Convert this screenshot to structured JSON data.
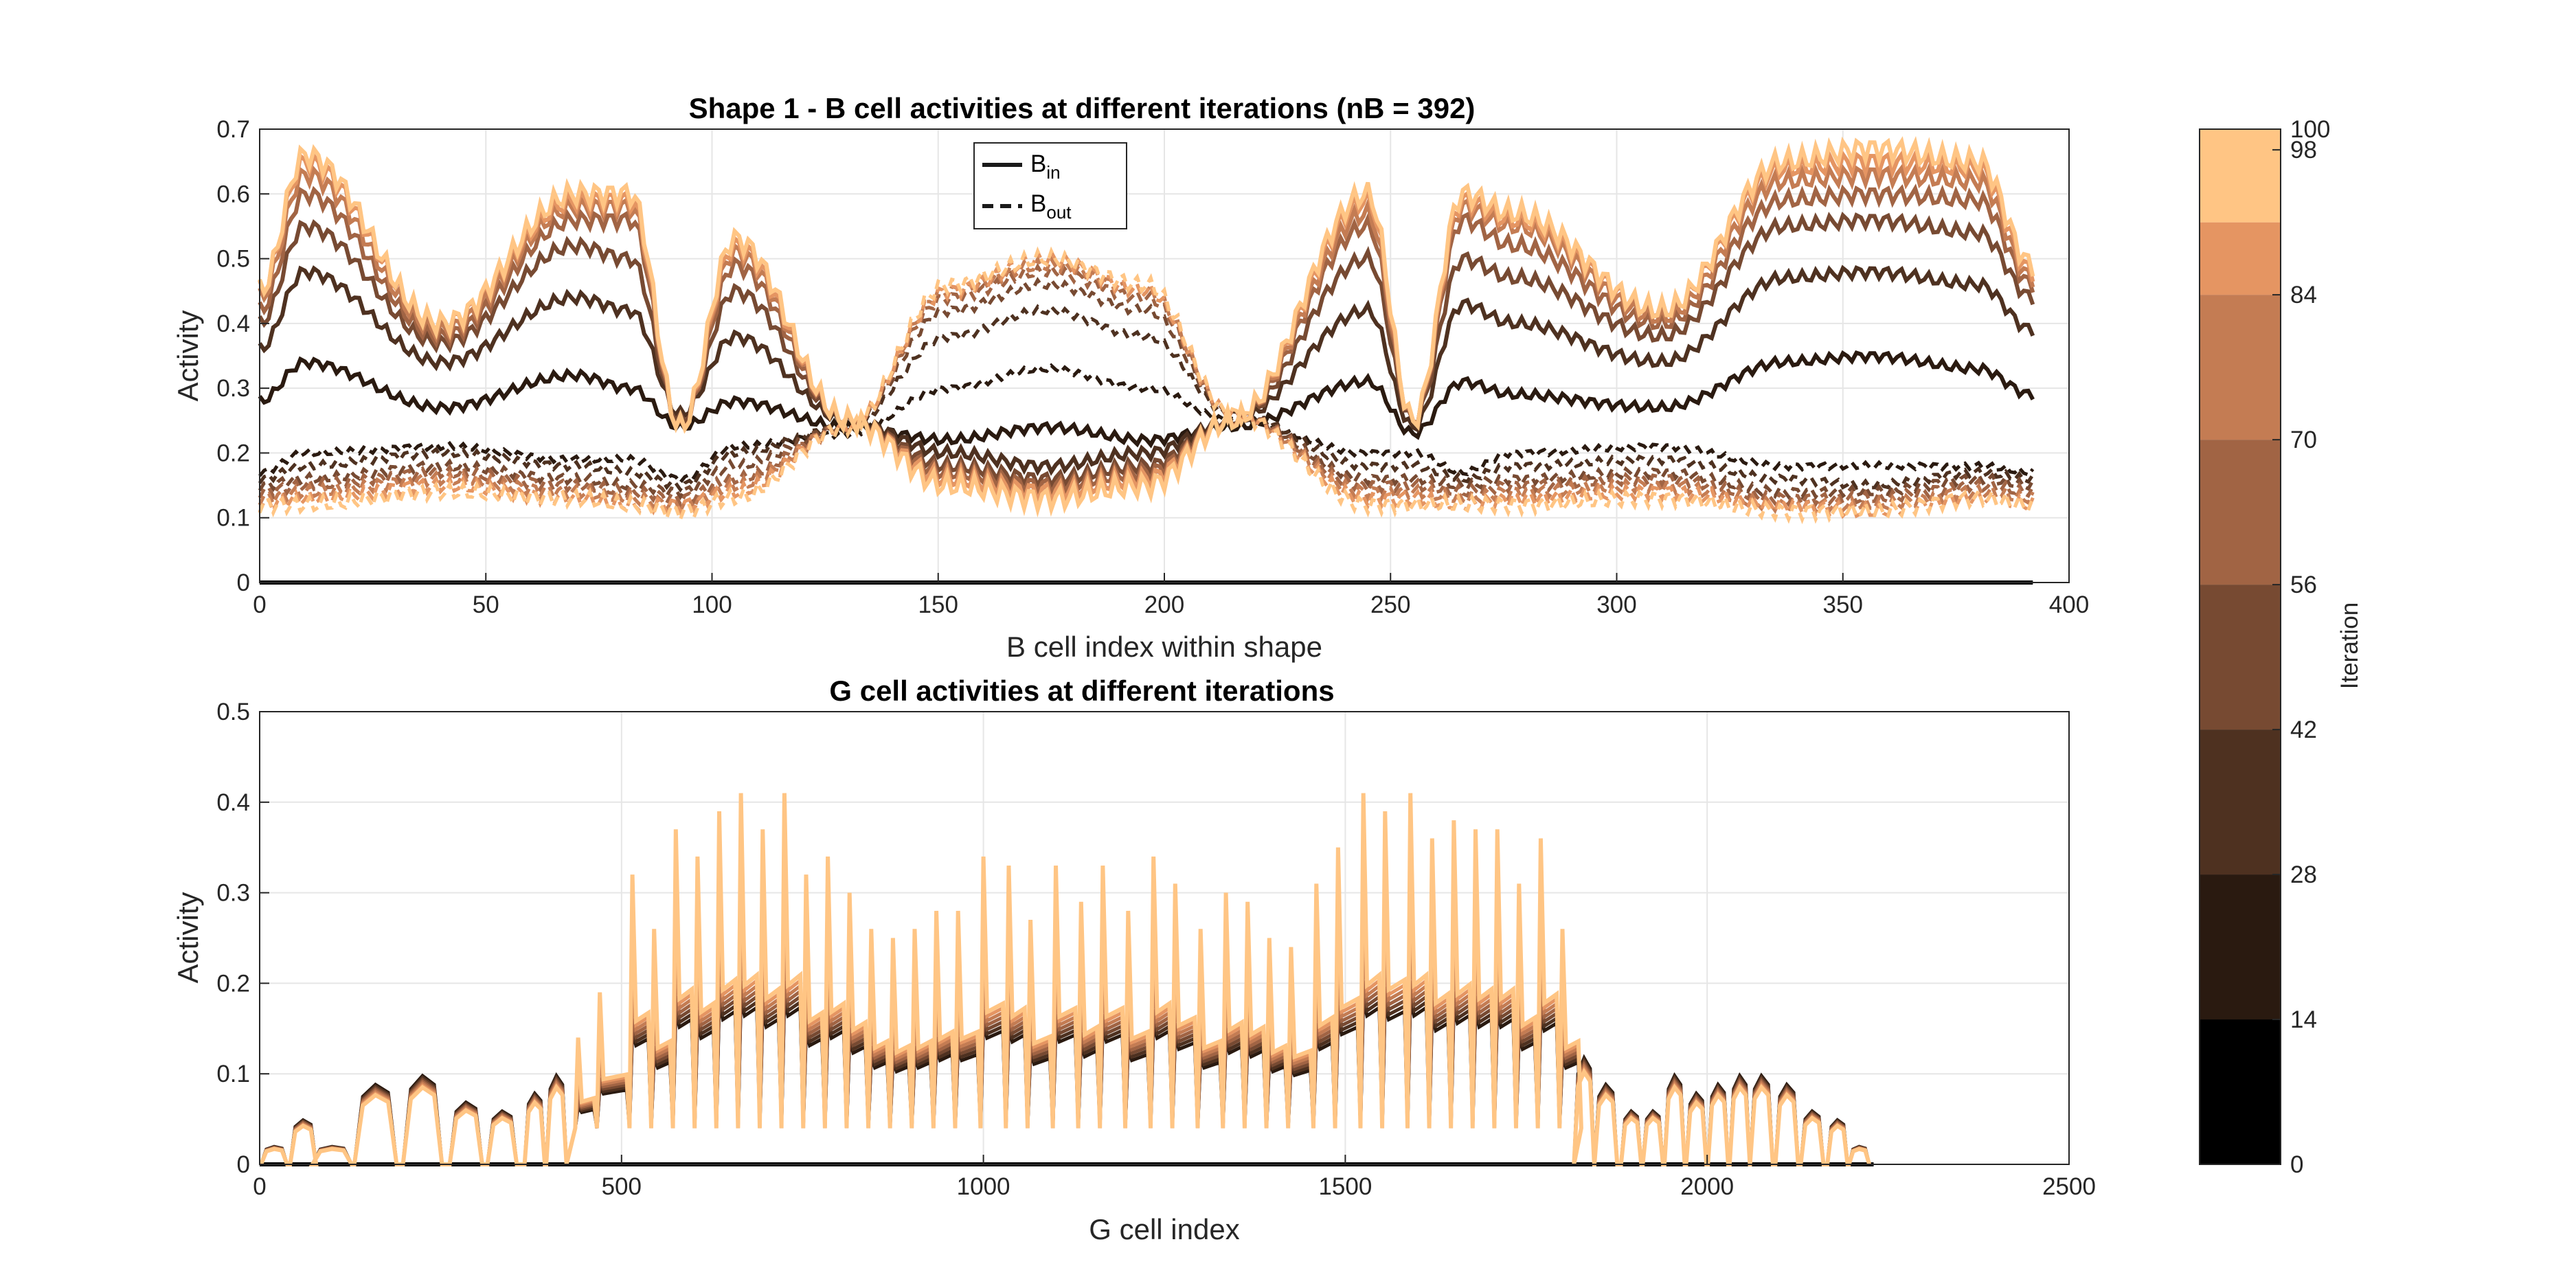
{
  "chart_data": [
    {
      "type": "line",
      "title": "Shape 1 - B cell activities at different iterations (nB = 392)",
      "xlabel": "B cell index within shape",
      "ylabel": "Activity",
      "xlim": [
        0,
        400
      ],
      "ylim": [
        0,
        0.7
      ],
      "xticks": [
        "0",
        "50",
        "100",
        "150",
        "200",
        "250",
        "300",
        "350",
        "400"
      ],
      "yticks": [
        "0",
        "0.1",
        "0.2",
        "0.3",
        "0.4",
        "0.5",
        "0.6",
        "0.7"
      ],
      "grid": true,
      "legend": {
        "placement": "top-center",
        "entries": [
          {
            "base": "B",
            "sub": "in",
            "style": "solid"
          },
          {
            "base": "B",
            "sub": "out",
            "style": "dashed"
          }
        ]
      },
      "n_cells": 392,
      "iterations_shown": [
        0,
        14,
        28,
        42,
        56,
        70,
        84,
        98
      ],
      "series": [
        {
          "iteration": 14,
          "profile": {
            "x": [
              0,
              10,
              40,
              70,
              82,
              93,
              105,
              130,
              152,
              174,
              196,
              215,
              245,
              255,
              266,
              277,
              310,
              337,
              356,
              380,
              392
            ],
            "in": [
              0.28,
              0.34,
              0.27,
              0.32,
              0.3,
              0.24,
              0.28,
              0.24,
              0.22,
              0.24,
              0.22,
              0.24,
              0.31,
              0.23,
              0.31,
              0.29,
              0.27,
              0.34,
              0.35,
              0.33,
              0.29
            ],
            "out": [
              0.17,
              0.2,
              0.21,
              0.19,
              0.19,
              0.16,
              0.21,
              0.23,
              0.3,
              0.33,
              0.3,
              0.25,
              0.2,
              0.2,
              0.17,
              0.2,
              0.21,
              0.18,
              0.18,
              0.18,
              0.17
            ]
          }
        },
        {
          "iteration": 28,
          "profile": {
            "x": [
              0,
              10,
              40,
              70,
              82,
              93,
              105,
              130,
              152,
              174,
              196,
              215,
              245,
              255,
              266,
              277,
              310,
              337,
              356,
              380,
              392
            ],
            "in": [
              0.36,
              0.48,
              0.34,
              0.44,
              0.42,
              0.26,
              0.38,
              0.25,
              0.2,
              0.18,
              0.2,
              0.25,
              0.42,
              0.24,
              0.43,
              0.4,
              0.34,
              0.47,
              0.48,
              0.46,
              0.39
            ],
            "out": [
              0.16,
              0.18,
              0.2,
              0.18,
              0.17,
              0.15,
              0.2,
              0.24,
              0.38,
              0.42,
              0.38,
              0.26,
              0.18,
              0.18,
              0.16,
              0.18,
              0.19,
              0.16,
              0.15,
              0.17,
              0.16
            ]
          }
        },
        {
          "iteration": 42,
          "profile": {
            "x": [
              0,
              10,
              40,
              70,
              82,
              93,
              105,
              130,
              152,
              174,
              196,
              215,
              245,
              255,
              266,
              277,
              310,
              337,
              356,
              380,
              392
            ],
            "in": [
              0.4,
              0.55,
              0.37,
              0.52,
              0.5,
              0.25,
              0.45,
              0.25,
              0.18,
              0.16,
              0.18,
              0.25,
              0.5,
              0.25,
              0.5,
              0.47,
              0.38,
              0.55,
              0.56,
              0.54,
              0.44
            ],
            "out": [
              0.15,
              0.16,
              0.18,
              0.16,
              0.15,
              0.14,
              0.18,
              0.24,
              0.42,
              0.46,
              0.42,
              0.26,
              0.16,
              0.16,
              0.15,
              0.16,
              0.17,
              0.14,
              0.14,
              0.16,
              0.15
            ]
          }
        },
        {
          "iteration": 56,
          "profile": {
            "x": [
              0,
              10,
              40,
              70,
              82,
              93,
              105,
              130,
              152,
              174,
              196,
              215,
              245,
              255,
              266,
              277,
              310,
              337,
              356,
              380,
              392
            ],
            "in": [
              0.42,
              0.6,
              0.38,
              0.56,
              0.56,
              0.24,
              0.49,
              0.25,
              0.17,
              0.15,
              0.17,
              0.25,
              0.55,
              0.25,
              0.56,
              0.52,
              0.4,
              0.59,
              0.6,
              0.59,
              0.46
            ],
            "out": [
              0.14,
              0.15,
              0.17,
              0.15,
              0.14,
              0.13,
              0.16,
              0.24,
              0.44,
              0.48,
              0.44,
              0.26,
              0.15,
              0.15,
              0.14,
              0.15,
              0.16,
              0.13,
              0.13,
              0.15,
              0.14
            ]
          }
        },
        {
          "iteration": 70,
          "profile": {
            "x": [
              0,
              10,
              40,
              70,
              82,
              93,
              105,
              130,
              152,
              174,
              196,
              215,
              245,
              255,
              266,
              277,
              310,
              337,
              356,
              380,
              392
            ],
            "in": [
              0.44,
              0.63,
              0.39,
              0.58,
              0.58,
              0.24,
              0.51,
              0.25,
              0.16,
              0.14,
              0.16,
              0.25,
              0.57,
              0.25,
              0.58,
              0.55,
              0.41,
              0.62,
              0.63,
              0.62,
              0.47
            ],
            "out": [
              0.13,
              0.14,
              0.16,
              0.14,
              0.13,
              0.12,
              0.15,
              0.24,
              0.45,
              0.49,
              0.45,
              0.26,
              0.14,
              0.14,
              0.13,
              0.14,
              0.15,
              0.12,
              0.12,
              0.14,
              0.13
            ]
          }
        },
        {
          "iteration": 84,
          "profile": {
            "x": [
              0,
              10,
              40,
              70,
              82,
              93,
              105,
              130,
              152,
              174,
              196,
              215,
              245,
              255,
              266,
              277,
              310,
              337,
              356,
              380,
              392
            ],
            "in": [
              0.45,
              0.65,
              0.4,
              0.59,
              0.59,
              0.24,
              0.52,
              0.25,
              0.16,
              0.14,
              0.16,
              0.25,
              0.59,
              0.25,
              0.59,
              0.56,
              0.42,
              0.64,
              0.65,
              0.64,
              0.48
            ],
            "out": [
              0.12,
              0.13,
              0.15,
              0.13,
              0.12,
              0.12,
              0.14,
              0.24,
              0.45,
              0.5,
              0.45,
              0.26,
              0.13,
              0.13,
              0.12,
              0.13,
              0.14,
              0.12,
              0.11,
              0.13,
              0.12
            ]
          }
        },
        {
          "iteration": 98,
          "profile": {
            "x": [
              0,
              10,
              40,
              70,
              82,
              93,
              105,
              130,
              152,
              174,
              196,
              215,
              245,
              255,
              266,
              277,
              310,
              337,
              356,
              380,
              392
            ],
            "in": [
              0.45,
              0.66,
              0.4,
              0.6,
              0.6,
              0.24,
              0.53,
              0.25,
              0.15,
              0.13,
              0.15,
              0.25,
              0.6,
              0.25,
              0.6,
              0.57,
              0.42,
              0.65,
              0.67,
              0.65,
              0.49
            ],
            "out": [
              0.12,
              0.12,
              0.14,
              0.13,
              0.12,
              0.11,
              0.13,
              0.24,
              0.46,
              0.5,
              0.46,
              0.26,
              0.12,
              0.12,
              0.12,
              0.12,
              0.13,
              0.11,
              0.11,
              0.13,
              0.12
            ]
          }
        }
      ],
      "baseline": {
        "iteration": 0,
        "value": 0
      }
    },
    {
      "type": "line",
      "title": "G cell activities at different iterations",
      "xlabel": "G cell index",
      "ylabel": "Activity",
      "xlim": [
        0,
        2500
      ],
      "ylim": [
        0,
        0.5
      ],
      "xticks": [
        "0",
        "500",
        "1000",
        "1500",
        "2000",
        "2500"
      ],
      "yticks": [
        "0",
        "0.1",
        "0.2",
        "0.3",
        "0.4",
        "0.5"
      ],
      "grid": true,
      "final_iteration_peaks": {
        "x": [
          20,
          60,
          100,
          160,
          225,
          285,
          335,
          380,
          410,
          440,
          470,
          515,
          545,
          575,
          605,
          635,
          665,
          695,
          725,
          755,
          785,
          815,
          845,
          875,
          905,
          935,
          965,
          1000,
          1035,
          1065,
          1100,
          1135,
          1165,
          1200,
          1235,
          1265,
          1300,
          1335,
          1365,
          1395,
          1425,
          1460,
          1490,
          1525,
          1555,
          1590,
          1620,
          1650,
          1680,
          1710,
          1740,
          1770,
          1800,
          1830,
          1860,
          1895,
          1925,
          1955,
          1985,
          2015,
          2045,
          2075,
          2110,
          2145,
          2180,
          2210
        ],
        "y": [
          0.02,
          0.05,
          0.02,
          0.09,
          0.1,
          0.07,
          0.06,
          0.08,
          0.1,
          0.14,
          0.19,
          0.32,
          0.26,
          0.37,
          0.34,
          0.39,
          0.41,
          0.37,
          0.41,
          0.32,
          0.34,
          0.3,
          0.26,
          0.25,
          0.26,
          0.28,
          0.28,
          0.34,
          0.33,
          0.27,
          0.33,
          0.29,
          0.33,
          0.28,
          0.34,
          0.31,
          0.26,
          0.3,
          0.29,
          0.25,
          0.24,
          0.31,
          0.35,
          0.41,
          0.39,
          0.41,
          0.36,
          0.38,
          0.37,
          0.37,
          0.31,
          0.36,
          0.26,
          0.12,
          0.09,
          0.06,
          0.06,
          0.1,
          0.08,
          0.09,
          0.1,
          0.1,
          0.09,
          0.06,
          0.05,
          0.02
        ]
      },
      "iterations_shown": [
        14,
        28,
        42,
        56,
        70,
        84,
        98
      ],
      "baseline": {
        "iteration": 0,
        "value": 0
      }
    }
  ],
  "colorbar": {
    "label": "Iteration",
    "ticks": [
      "0",
      "14",
      "28",
      "42",
      "56",
      "70",
      "84",
      "98",
      "100"
    ],
    "colors": [
      "#000000",
      "#2a1a10",
      "#4e3120",
      "#774a32",
      "#a16444",
      "#c47c53",
      "#e59562",
      "#f6a86c",
      "#ffc584"
    ]
  },
  "series_colors": {
    "0": "#000000",
    "14": "#2a1a10",
    "28": "#4e3120",
    "42": "#774a32",
    "56": "#a16444",
    "70": "#c47c53",
    "84": "#e59562",
    "98": "#ffc584"
  }
}
